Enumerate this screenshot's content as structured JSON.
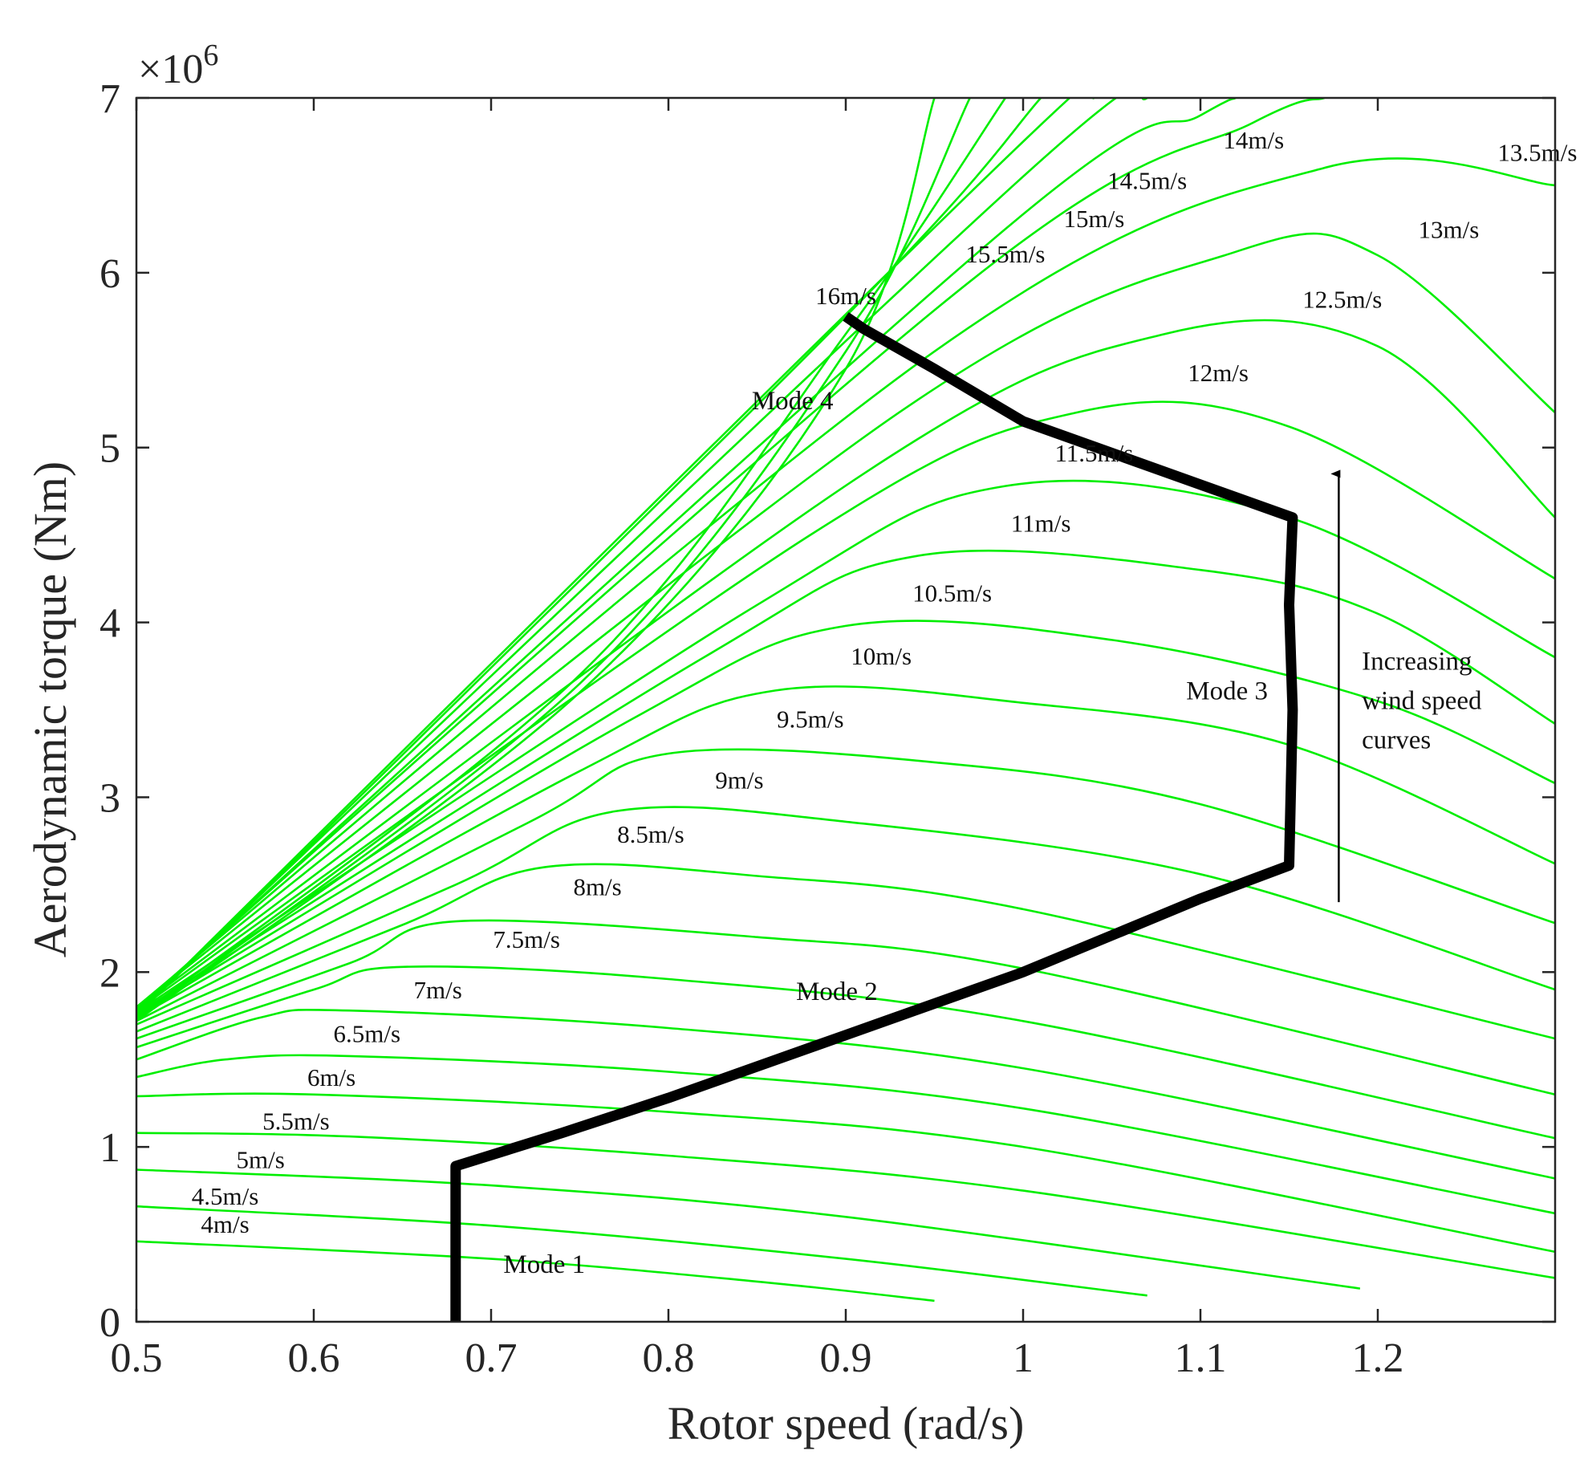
{
  "chart_data": {
    "type": "line",
    "title": "",
    "xlabel": "Rotor speed (rad/s)",
    "ylabel": "Aerodynamic torque (Nm)",
    "xlim": [
      0.5,
      1.3
    ],
    "ylim": [
      0,
      7
    ],
    "xticks": [
      "0.5",
      "0.6",
      "0.7",
      "0.8",
      "0.9",
      "1",
      "1.1",
      "1.2"
    ],
    "yticks": [
      "0",
      "1",
      "2",
      "3",
      "4",
      "5",
      "6",
      "7"
    ],
    "y_multiplier": {
      "base": "×10",
      "exp": "6"
    },
    "grid": false,
    "legend": "none",
    "colors": {
      "curves": "#00ee00",
      "trajectory": "#000000",
      "axes": "#262626"
    },
    "wind_curves": [
      {
        "label": "4m/s",
        "label_at": [
          0.55,
          0.51
        ],
        "points": [
          [
            0.5,
            0.46
          ],
          [
            0.7,
            0.36
          ],
          [
            0.85,
            0.23
          ],
          [
            0.95,
            0.12
          ]
        ]
      },
      {
        "label": "4.5m/s",
        "label_at": [
          0.55,
          0.67
        ],
        "points": [
          [
            0.5,
            0.66
          ],
          [
            0.7,
            0.55
          ],
          [
            0.9,
            0.36
          ],
          [
            1.07,
            0.15
          ]
        ]
      },
      {
        "label": "5m/s",
        "label_at": [
          0.57,
          0.88
        ],
        "points": [
          [
            0.5,
            0.87
          ],
          [
            0.7,
            0.78
          ],
          [
            0.9,
            0.6
          ],
          [
            1.19,
            0.19
          ]
        ]
      },
      {
        "label": "5.5m/s",
        "label_at": [
          0.59,
          1.1
        ],
        "points": [
          [
            0.5,
            1.08
          ],
          [
            0.62,
            1.06
          ],
          [
            0.8,
            0.95
          ],
          [
            1.0,
            0.75
          ],
          [
            1.3,
            0.25
          ]
        ]
      },
      {
        "label": "6m/s",
        "label_at": [
          0.61,
          1.35
        ],
        "points": [
          [
            0.5,
            1.29
          ],
          [
            0.6,
            1.3
          ],
          [
            0.8,
            1.2
          ],
          [
            1.0,
            1.0
          ],
          [
            1.3,
            0.4
          ]
        ]
      },
      {
        "label": "6.5m/s",
        "label_at": [
          0.63,
          1.6
        ],
        "points": [
          [
            0.5,
            1.4
          ],
          [
            0.55,
            1.5
          ],
          [
            0.62,
            1.52
          ],
          [
            0.8,
            1.43
          ],
          [
            1.0,
            1.22
          ],
          [
            1.3,
            0.62
          ]
        ]
      },
      {
        "label": "7m/s",
        "label_at": [
          0.67,
          1.85
        ],
        "points": [
          [
            0.5,
            1.5
          ],
          [
            0.57,
            1.74
          ],
          [
            0.62,
            1.78
          ],
          [
            0.8,
            1.68
          ],
          [
            1.0,
            1.45
          ],
          [
            1.3,
            0.82
          ]
        ]
      },
      {
        "label": "7.5m/s",
        "label_at": [
          0.72,
          2.14
        ],
        "points": [
          [
            0.5,
            1.57
          ],
          [
            0.6,
            1.9
          ],
          [
            0.65,
            2.03
          ],
          [
            0.8,
            1.96
          ],
          [
            1.0,
            1.72
          ],
          [
            1.3,
            1.05
          ]
        ]
      },
      {
        "label": "8m/s",
        "label_at": [
          0.76,
          2.44
        ],
        "points": [
          [
            0.5,
            1.62
          ],
          [
            0.62,
            2.05
          ],
          [
            0.68,
            2.29
          ],
          [
            0.85,
            2.2
          ],
          [
            1.0,
            2.02
          ],
          [
            1.3,
            1.3
          ]
        ]
      },
      {
        "label": "8.5m/s",
        "label_at": [
          0.79,
          2.74
        ],
        "points": [
          [
            0.5,
            1.66
          ],
          [
            0.65,
            2.27
          ],
          [
            0.73,
            2.6
          ],
          [
            0.85,
            2.55
          ],
          [
            1.0,
            2.36
          ],
          [
            1.3,
            1.62
          ]
        ]
      },
      {
        "label": "9m/s",
        "label_at": [
          0.84,
          3.05
        ],
        "points": [
          [
            0.5,
            1.7
          ],
          [
            0.68,
            2.5
          ],
          [
            0.77,
            2.92
          ],
          [
            0.9,
            2.86
          ],
          [
            1.1,
            2.56
          ],
          [
            1.3,
            1.9
          ]
        ]
      },
      {
        "label": "9.5m/s",
        "label_at": [
          0.88,
          3.4
        ],
        "points": [
          [
            0.5,
            1.72
          ],
          [
            0.72,
            2.85
          ],
          [
            0.8,
            3.25
          ],
          [
            0.95,
            3.2
          ],
          [
            1.1,
            2.96
          ],
          [
            1.3,
            2.28
          ]
        ]
      },
      {
        "label": "10m/s",
        "label_at": [
          0.92,
          3.76
        ],
        "points": [
          [
            0.5,
            1.74
          ],
          [
            0.75,
            3.15
          ],
          [
            0.86,
            3.61
          ],
          [
            1.0,
            3.54
          ],
          [
            1.15,
            3.3
          ],
          [
            1.3,
            2.62
          ]
        ]
      },
      {
        "label": "10.5m/s",
        "label_at": [
          0.96,
          4.12
        ],
        "points": [
          [
            0.5,
            1.75
          ],
          [
            0.78,
            3.45
          ],
          [
            0.9,
            3.98
          ],
          [
            1.05,
            3.9
          ],
          [
            1.2,
            3.55
          ],
          [
            1.3,
            3.08
          ]
        ]
      },
      {
        "label": "11m/s",
        "label_at": [
          1.01,
          4.52
        ],
        "points": [
          [
            0.5,
            1.76
          ],
          [
            0.82,
            3.8
          ],
          [
            0.94,
            4.38
          ],
          [
            1.1,
            4.3
          ],
          [
            1.2,
            4.05
          ],
          [
            1.3,
            3.42
          ]
        ]
      },
      {
        "label": "11.5m/s",
        "label_at": [
          1.04,
          4.92
        ],
        "points": [
          [
            0.5,
            1.77
          ],
          [
            0.85,
            4.1
          ],
          [
            0.99,
            4.78
          ],
          [
            1.15,
            4.6
          ],
          [
            1.3,
            3.8
          ]
        ]
      },
      {
        "label": "12m/s",
        "label_at": [
          1.11,
          5.38
        ],
        "points": [
          [
            0.5,
            1.78
          ],
          [
            0.88,
            4.5
          ],
          [
            1.03,
            5.2
          ],
          [
            1.15,
            5.12
          ],
          [
            1.3,
            4.25
          ]
        ]
      },
      {
        "label": "12.5m/s",
        "label_at": [
          1.18,
          5.8
        ],
        "points": [
          [
            0.5,
            1.79
          ],
          [
            0.91,
            4.85
          ],
          [
            1.08,
            5.65
          ],
          [
            1.2,
            5.58
          ],
          [
            1.3,
            4.6
          ]
        ]
      },
      {
        "label": "13m/s",
        "label_at": [
          1.24,
          6.2
        ],
        "points": [
          [
            0.5,
            1.8
          ],
          [
            0.93,
            5.2
          ],
          [
            1.12,
            6.12
          ],
          [
            1.2,
            6.1
          ],
          [
            1.3,
            5.2
          ]
        ]
      },
      {
        "label": "13.5m/s",
        "label_at": [
          1.29,
          6.64
        ],
        "points": [
          [
            0.5,
            1.8
          ],
          [
            0.95,
            5.55
          ],
          [
            1.17,
            6.6
          ],
          [
            1.3,
            6.5
          ]
        ]
      },
      {
        "label": "14m/s",
        "label_at": [
          1.13,
          6.71
        ],
        "points": [
          [
            0.5,
            1.79
          ],
          [
            0.97,
            5.95
          ],
          [
            1.13,
            6.86
          ],
          [
            1.17,
            7.0
          ]
        ]
      },
      {
        "label": "14.5m/s",
        "label_at": [
          1.07,
          6.48
        ],
        "points": [
          [
            0.5,
            1.78
          ],
          [
            0.99,
            6.25
          ],
          [
            1.1,
            6.9
          ],
          [
            1.12,
            7.0
          ]
        ]
      },
      {
        "label": "15m/s",
        "label_at": [
          1.04,
          6.26
        ],
        "points": [
          [
            0.5,
            1.77
          ],
          [
            1.0,
            6.55
          ],
          [
            1.07,
            7.0
          ]
        ]
      },
      {
        "label": "15.5m/s",
        "label_at": [
          0.99,
          6.06
        ],
        "points": [
          [
            0.5,
            1.76
          ],
          [
            1.0,
            6.75
          ],
          [
            1.04,
            7.0
          ]
        ]
      },
      {
        "label": "16m/s",
        "label_at": [
          0.9,
          5.82
        ],
        "points": [
          [
            0.5,
            1.75
          ],
          [
            0.9,
            5.75
          ],
          [
            1.01,
            7.0
          ]
        ]
      },
      {
        "label": "",
        "label_at": null,
        "points": [
          [
            0.5,
            1.74
          ],
          [
            0.75,
            3.7
          ],
          [
            0.9,
            5.65
          ],
          [
            0.99,
            7.0
          ]
        ]
      },
      {
        "label": "",
        "label_at": null,
        "points": [
          [
            0.5,
            1.73
          ],
          [
            0.75,
            3.65
          ],
          [
            0.9,
            5.55
          ],
          [
            0.97,
            7.0
          ]
        ]
      },
      {
        "label": "",
        "label_at": null,
        "points": [
          [
            0.5,
            1.72
          ],
          [
            0.75,
            3.6
          ],
          [
            0.9,
            5.45
          ],
          [
            0.95,
            7.0
          ]
        ]
      }
    ],
    "trajectory": {
      "points": [
        [
          0.68,
          0.0
        ],
        [
          0.68,
          0.89
        ],
        [
          0.74,
          1.08
        ],
        [
          0.8,
          1.28
        ],
        [
          0.9,
          1.64
        ],
        [
          1.0,
          2.0
        ],
        [
          1.1,
          2.42
        ],
        [
          1.15,
          2.61
        ],
        [
          1.152,
          3.5
        ],
        [
          1.15,
          4.1
        ],
        [
          1.152,
          4.6
        ],
        [
          1.0,
          5.15
        ],
        [
          0.95,
          5.45
        ],
        [
          0.91,
          5.68
        ],
        [
          0.9,
          5.75
        ]
      ]
    },
    "annotations": [
      {
        "text": "Mode 1",
        "at": [
          0.73,
          0.28
        ]
      },
      {
        "text": "Mode 2",
        "at": [
          0.895,
          1.84
        ]
      },
      {
        "text": "Mode 3",
        "at": [
          1.115,
          3.56
        ]
      },
      {
        "text": "Mode 4",
        "at": [
          0.87,
          5.22
        ]
      }
    ],
    "arrow": {
      "from": [
        1.178,
        2.4
      ],
      "to": [
        1.178,
        4.85
      ],
      "label_lines": [
        "Increasing",
        "wind speed",
        "curves"
      ],
      "label_at": [
        1.191,
        3.73
      ]
    }
  }
}
